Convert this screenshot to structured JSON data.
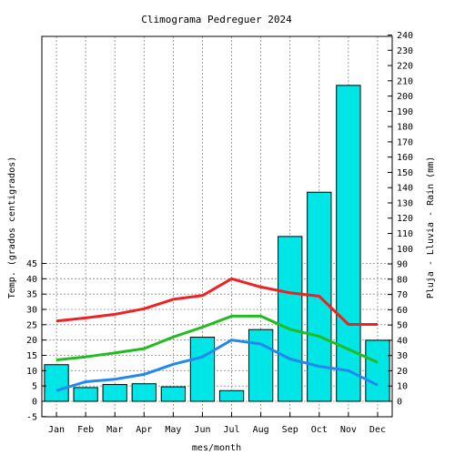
{
  "chart_data": {
    "type": "bar",
    "title": "Climograma Pedreguer 2024",
    "xlabel": "mes/month",
    "ylabel_left": "Temp. (grados centigrados)",
    "ylabel_right": "Pluja - Lluvia - Rain (mm)",
    "categories": [
      "Jan",
      "Feb",
      "Mar",
      "Apr",
      "May",
      "Jun",
      "Jul",
      "Aug",
      "Sep",
      "Oct",
      "Nov",
      "Dec"
    ],
    "temp_axis": {
      "min": -5,
      "max": 45,
      "ticks": [
        -5,
        0,
        5,
        10,
        15,
        20,
        25,
        30,
        35,
        40,
        45
      ]
    },
    "rain_axis": {
      "min": 0,
      "max": 240,
      "ticks": [
        0,
        10,
        20,
        30,
        40,
        50,
        60,
        70,
        80,
        90,
        100,
        110,
        120,
        130,
        140,
        150,
        160,
        170,
        180,
        190,
        200,
        210,
        220,
        230,
        240
      ]
    },
    "grid": true,
    "rain": {
      "color": "#00e5e5",
      "values": [
        24,
        9,
        11,
        11.5,
        9.5,
        42,
        7,
        47,
        108,
        137,
        207,
        40
      ]
    },
    "temperature_series": [
      {
        "color": "#ee2222",
        "values": [
          26.2,
          27.2,
          28.4,
          30.2,
          33.3,
          34.5,
          40.0,
          37.3,
          35.4,
          34.3,
          25.1,
          25.1
        ]
      },
      {
        "color": "#22bb22",
        "values": [
          13.5,
          14.5,
          15.8,
          17.2,
          21.0,
          24.2,
          27.8,
          27.8,
          23.5,
          21.2,
          17.0,
          12.7
        ]
      },
      {
        "color": "#2288ee",
        "values": [
          3.5,
          6.4,
          7.2,
          8.8,
          12.1,
          14.5,
          20.0,
          18.7,
          13.8,
          11.4,
          10.0,
          5.3
        ]
      }
    ]
  }
}
